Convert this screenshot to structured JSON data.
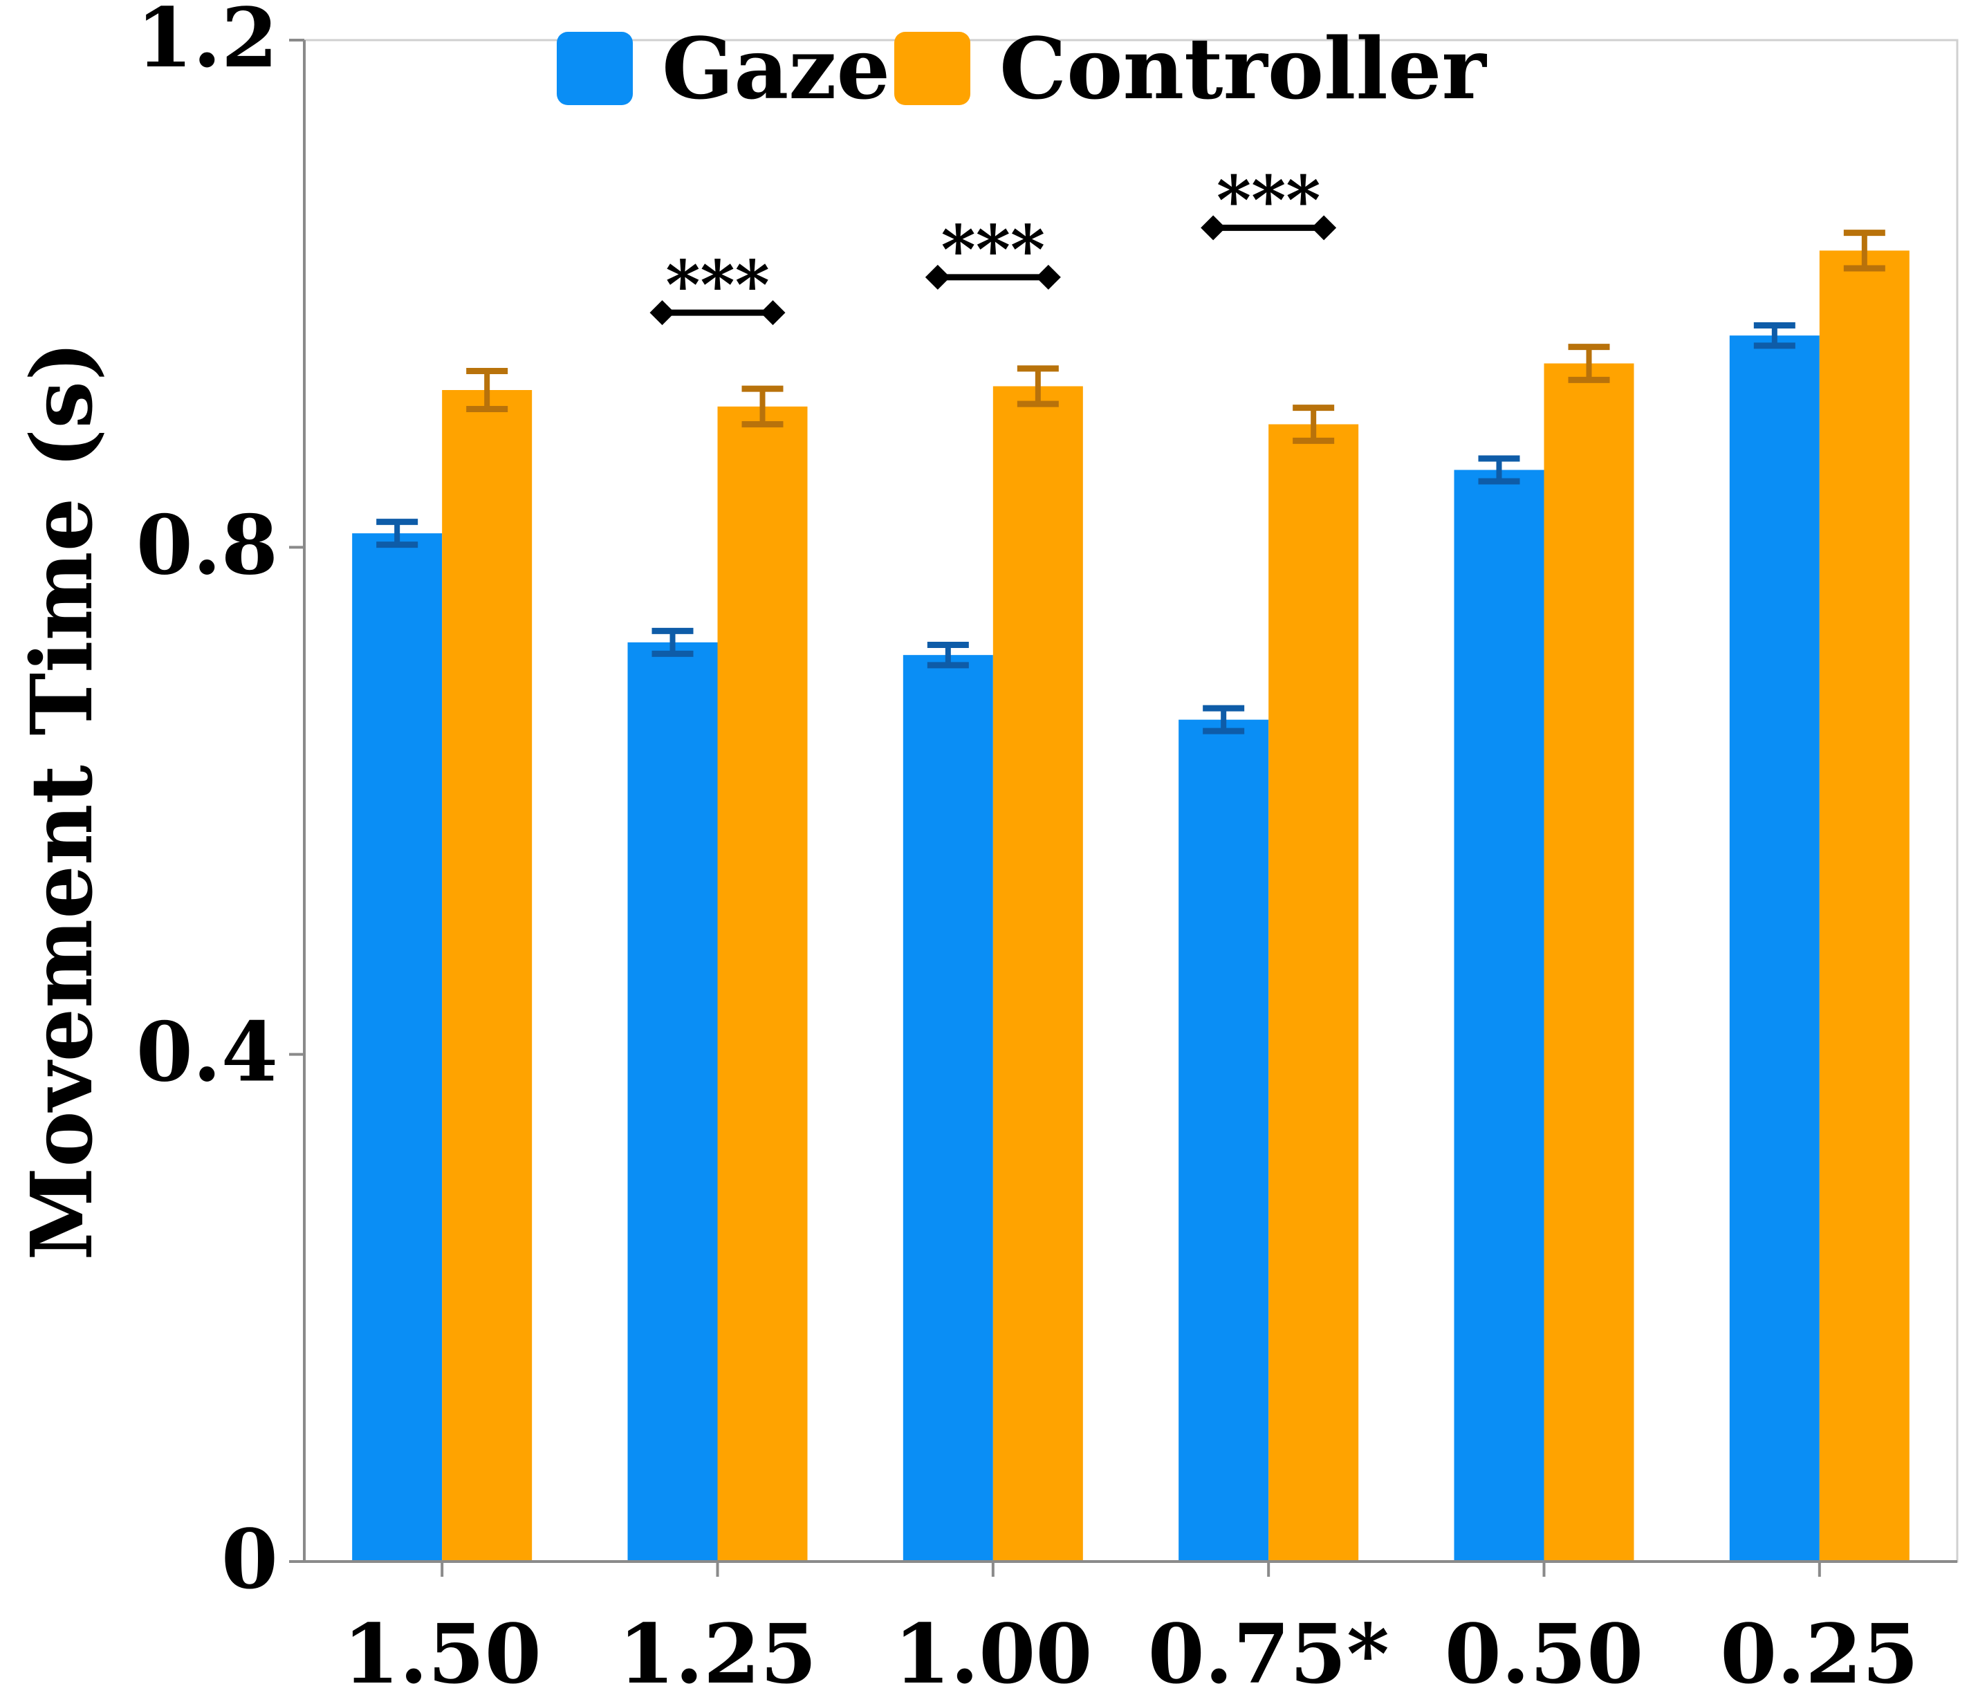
{
  "chart_data": {
    "type": "bar",
    "title": "",
    "xlabel": "",
    "ylabel": "Movement Time (s)",
    "ylim": [
      0,
      1.2
    ],
    "yticks": [
      0,
      0.4,
      0.8,
      1.2
    ],
    "ytick_labels": [
      "0",
      "0.4",
      "0.8",
      "1.2"
    ],
    "categories": [
      "1.50",
      "1.25",
      "1.00",
      "0.75*",
      "0.50",
      "0.25"
    ],
    "legend_position": "top-center",
    "grid": false,
    "series": [
      {
        "name": "Gaze",
        "color": "#0A8EF5",
        "error_color": "#0E5CA8",
        "values": [
          0.811,
          0.725,
          0.715,
          0.664,
          0.861,
          0.967
        ],
        "errors": [
          0.009,
          0.009,
          0.008,
          0.009,
          0.009,
          0.008
        ]
      },
      {
        "name": "Controller",
        "color": "#FFA300",
        "error_color": "#B8720B",
        "values": [
          0.924,
          0.911,
          0.927,
          0.897,
          0.945,
          1.034
        ],
        "errors": [
          0.015,
          0.014,
          0.014,
          0.013,
          0.013,
          0.014
        ]
      }
    ],
    "significance": [
      {
        "category_index": 1,
        "label": "***",
        "y": 0.985
      },
      {
        "category_index": 2,
        "label": "***",
        "y": 1.013
      },
      {
        "category_index": 3,
        "label": "***",
        "y": 1.052
      }
    ]
  }
}
